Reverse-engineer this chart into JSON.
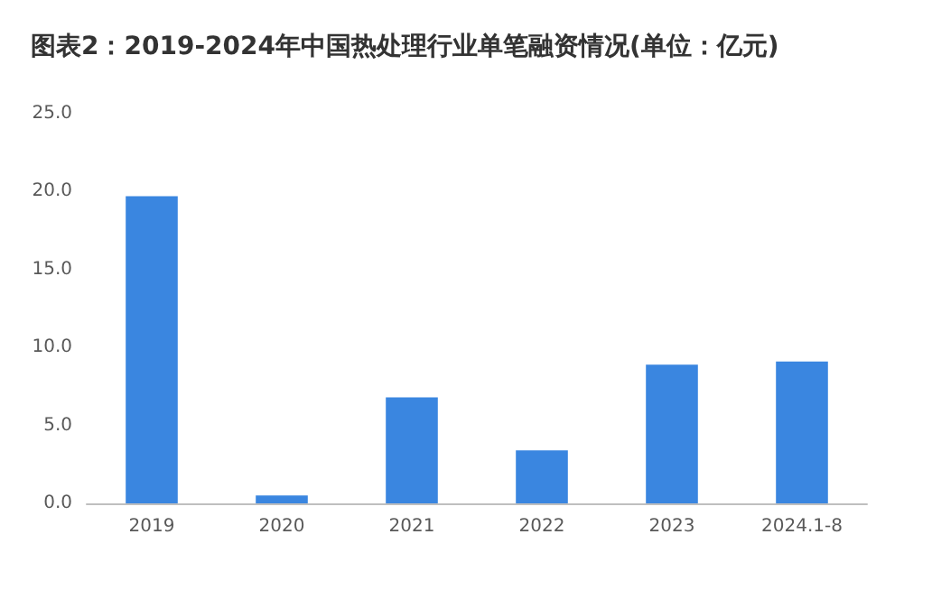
{
  "chart_data": {
    "type": "bar",
    "title": "图表2：2019-2024年中国热处理行业单笔融资情况(单位：亿元)",
    "categories": [
      "2019",
      "2020",
      "2021",
      "2022",
      "2023",
      "2024.1-8"
    ],
    "values": [
      19.7,
      0.5,
      6.8,
      3.4,
      8.9,
      9.1
    ],
    "color": "#3a86e0",
    "ylim": [
      0,
      25
    ],
    "yticks": [
      {
        "value": 0,
        "label": "0.0"
      },
      {
        "value": 5,
        "label": "5.0"
      },
      {
        "value": 10,
        "label": "10.0"
      },
      {
        "value": 15,
        "label": "15.0"
      },
      {
        "value": 20,
        "label": "20.0"
      },
      {
        "value": 25,
        "label": "25.0"
      }
    ],
    "grid": false
  }
}
